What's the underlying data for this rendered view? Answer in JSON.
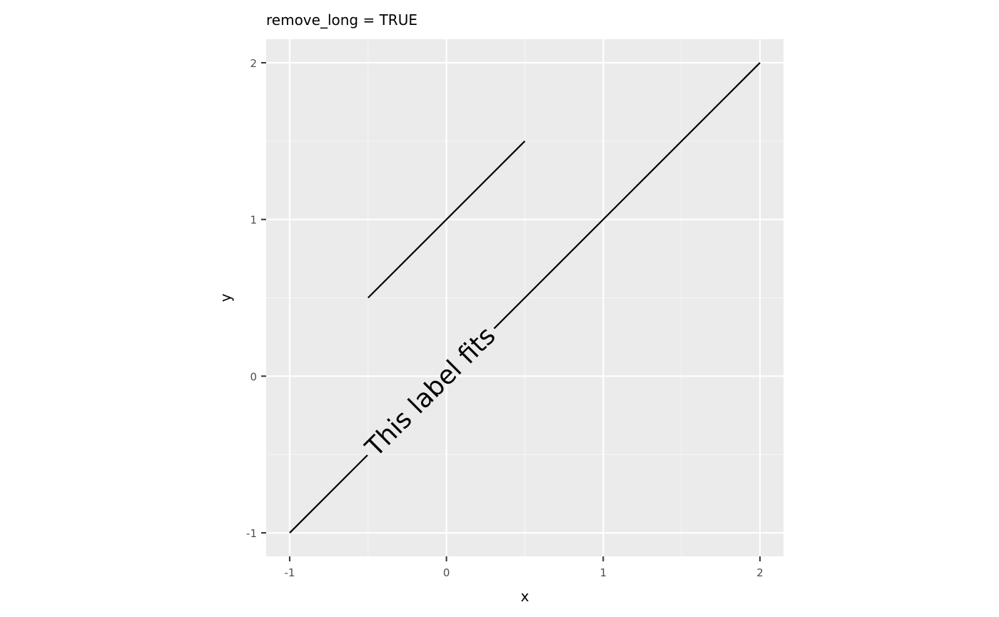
{
  "chart_data": {
    "type": "line",
    "title": "remove_long = TRUE",
    "xlabel": "x",
    "ylabel": "y",
    "xlim": [
      -1.15,
      2.15
    ],
    "ylim": [
      -1.15,
      2.15
    ],
    "x_ticks": [
      -1,
      0,
      1,
      2
    ],
    "y_ticks": [
      -1,
      0,
      1,
      2
    ],
    "x_tick_labels": [
      "-1",
      "0",
      "1",
      "2"
    ],
    "y_tick_labels": [
      "-1",
      "0",
      "1",
      "2"
    ],
    "x_minor_breaks": [
      -0.5,
      0.5,
      1.5
    ],
    "y_minor_breaks": [
      -0.5,
      0.5,
      1.5
    ],
    "grid": true,
    "series": [
      {
        "label": "This label fits",
        "x": [
          -1,
          2
        ],
        "y": [
          -1,
          2
        ],
        "label_position": 0.3
      },
      {
        "label": "",
        "x": [
          -0.5,
          0.5
        ],
        "y": [
          0.5,
          1.5
        ]
      }
    ],
    "colors": {
      "panel_background": "#ebebeb",
      "grid_major": "#ffffff",
      "grid_minor": "#f5f5f5",
      "line": "#000000",
      "tick_text": "#4d4d4d",
      "tick_mark": "#333333"
    }
  }
}
